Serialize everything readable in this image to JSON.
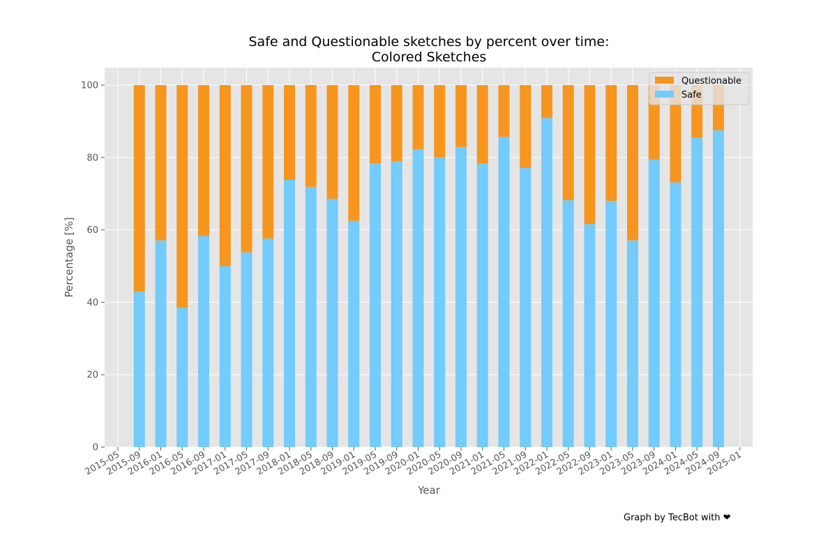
{
  "chart_data": {
    "type": "bar",
    "stacked": true,
    "title": "Safe and Questionable sketches by percent over time:",
    "subtitle": "Colored Sketches",
    "xlabel": "Year",
    "ylabel": "Percentage [%]",
    "ylim": [
      0,
      105
    ],
    "yticks": [
      0,
      20,
      40,
      60,
      80,
      100
    ],
    "xticks": [
      "2015-05",
      "2015-09",
      "2016-01",
      "2016-05",
      "2016-09",
      "2017-01",
      "2017-05",
      "2017-09",
      "2018-01",
      "2018-05",
      "2018-09",
      "2019-01",
      "2019-05",
      "2019-09",
      "2020-01",
      "2020-05",
      "2020-09",
      "2021-01",
      "2021-05",
      "2021-09",
      "2022-01",
      "2022-05",
      "2022-09",
      "2023-01",
      "2023-05",
      "2023-09",
      "2024-01",
      "2024-05",
      "2024-09",
      "2025-01"
    ],
    "categories": [
      "2015-09",
      "2016-01",
      "2016-05",
      "2016-09",
      "2017-01",
      "2017-05",
      "2017-09",
      "2018-01",
      "2018-05",
      "2018-09",
      "2019-01",
      "2019-05",
      "2019-09",
      "2020-01",
      "2020-05",
      "2020-09",
      "2021-01",
      "2021-05",
      "2021-09",
      "2022-01",
      "2022-05",
      "2022-09",
      "2023-01",
      "2023-05",
      "2023-09",
      "2024-01",
      "2024-05",
      "2024-09"
    ],
    "grid": true,
    "legend_position": "top-right",
    "series": [
      {
        "name": "Safe",
        "color": "#73ccfb",
        "values": [
          42.9,
          57.1,
          38.5,
          58.3,
          50.0,
          53.8,
          57.6,
          73.8,
          71.9,
          68.6,
          62.5,
          78.3,
          79.0,
          82.3,
          80.0,
          82.9,
          78.3,
          85.7,
          77.1,
          90.9,
          68.2,
          61.6,
          68.0,
          57.1,
          79.4,
          73.1,
          85.4,
          87.5
        ]
      },
      {
        "name": "Questionable",
        "color": "#f7961e",
        "values": [
          57.1,
          42.9,
          61.5,
          41.7,
          50.0,
          46.2,
          42.4,
          26.2,
          28.1,
          31.4,
          37.5,
          21.7,
          21.0,
          17.7,
          20.0,
          17.1,
          21.7,
          14.3,
          22.9,
          9.1,
          31.8,
          38.4,
          32.0,
          42.9,
          20.6,
          26.9,
          14.6,
          12.5
        ]
      }
    ],
    "colors": {
      "plot_background": "#e5e5e5",
      "grid": "#ffffff",
      "tick_text": "#555555"
    }
  },
  "credit": "Graph by TecBot with ❤"
}
